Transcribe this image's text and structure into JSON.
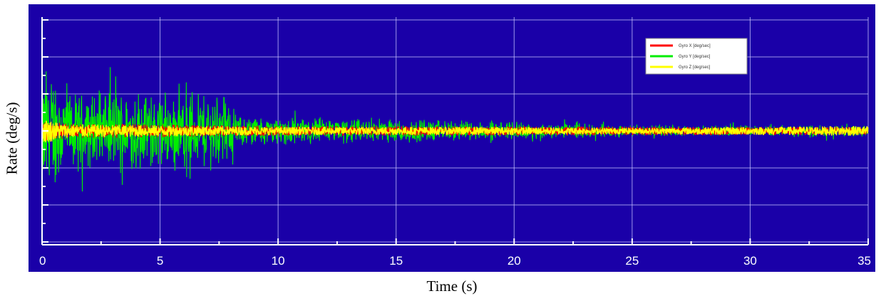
{
  "chart_data": {
    "type": "line",
    "xlabel": "Time (s)",
    "ylabel": "Rate (deg/s)",
    "xlim": [
      0,
      35
    ],
    "x_ticks": [
      0,
      5,
      10,
      15,
      20,
      25,
      30,
      35
    ],
    "x_tick_labels": [
      "0",
      "5",
      "10",
      "15",
      "20",
      "25",
      "30",
      "35"
    ],
    "y_ticks_labeled": false,
    "grid": true,
    "legend_position": "top-right",
    "series": [
      {
        "name": "Gyro X [deg/sec]",
        "color": "#ff0000",
        "amplitude_envelope": [
          [
            0,
            0.5
          ],
          [
            1,
            0.4
          ],
          [
            10,
            0.25
          ],
          [
            35,
            0.2
          ]
        ]
      },
      {
        "name": "Gyro Y [deg/sec]",
        "color": "#00ee00",
        "amplitude_envelope": [
          [
            0,
            3.8
          ],
          [
            0.3,
            4.0
          ],
          [
            1,
            2.2
          ],
          [
            5,
            2.4
          ],
          [
            7.8,
            2.1
          ],
          [
            8.2,
            1.0
          ],
          [
            10,
            0.8
          ],
          [
            15,
            0.7
          ],
          [
            20,
            0.5
          ],
          [
            25,
            0.3
          ],
          [
            30,
            0.3
          ],
          [
            35,
            0.35
          ]
        ]
      },
      {
        "name": "Gyro Z [deg/sec]",
        "color": "#ffff00",
        "amplitude_envelope": [
          [
            0,
            0.7
          ],
          [
            1,
            0.35
          ],
          [
            10,
            0.2
          ],
          [
            20,
            0.2
          ],
          [
            25,
            0.15
          ],
          [
            35,
            0.25
          ]
        ]
      }
    ]
  },
  "colors": {
    "plot_background": "#1a00a8",
    "grid": "#c8c8ff",
    "axis": "#ffffff"
  }
}
